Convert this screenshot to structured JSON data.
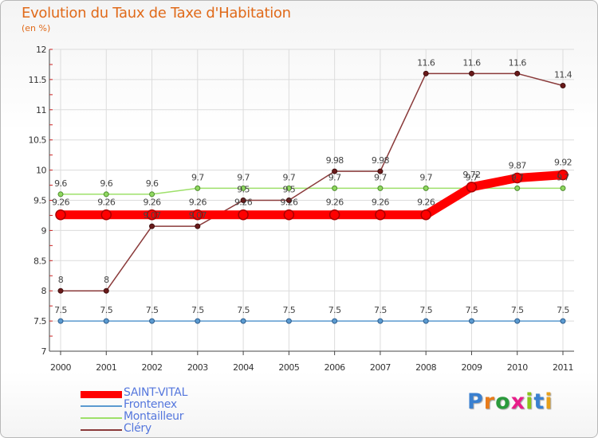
{
  "title": "Evolution du Taux de Taxe d'Habitation",
  "subtitle": "(en %)",
  "logo": {
    "text": "Proxiti",
    "letter_colors": [
      "#3a80d0",
      "#e87b1a",
      "#2a9a3c",
      "#e81e8a",
      "#8ac41a",
      "#3a80d0",
      "#e8a01a"
    ]
  },
  "chart_data": {
    "type": "line",
    "x": [
      "2000",
      "2001",
      "2002",
      "2003",
      "2004",
      "2005",
      "2006",
      "2007",
      "2008",
      "2009",
      "2010",
      "2011"
    ],
    "yticks": [
      "7",
      "7.5",
      "8",
      "8.5",
      "9",
      "9.5",
      "10",
      "10.5",
      "11",
      "11.5",
      "12"
    ],
    "ylim": [
      7,
      12
    ],
    "grid": true,
    "legend_position": "bottom-left",
    "series": [
      {
        "name": "SAINT-VITAL",
        "color": "#ff0000",
        "values": [
          9.26,
          9.26,
          9.26,
          9.26,
          9.26,
          9.26,
          9.26,
          9.26,
          9.26,
          9.72,
          9.87,
          9.92
        ],
        "labels": [
          "9.26",
          "9.26",
          "9.26",
          "9.26",
          "9.26",
          "9.26",
          "9.26",
          "9.26",
          "9.26",
          "9.72",
          "9.87",
          "9.92"
        ]
      },
      {
        "name": "Frontenex",
        "color": "#5b9ad0",
        "values": [
          7.5,
          7.5,
          7.5,
          7.5,
          7.5,
          7.5,
          7.5,
          7.5,
          7.5,
          7.5,
          7.5,
          7.5
        ],
        "labels": [
          "7.5",
          "7.5",
          "7.5",
          "7.5",
          "7.5",
          "7.5",
          "7.5",
          "7.5",
          "7.5",
          "7.5",
          "7.5",
          "7.5"
        ]
      },
      {
        "name": "Montailleur",
        "color": "#9ee06a",
        "values": [
          9.6,
          9.6,
          9.6,
          9.7,
          9.7,
          9.7,
          9.7,
          9.7,
          9.7,
          9.7,
          9.7,
          9.7
        ],
        "labels": [
          "9.6",
          "9.6",
          "9.6",
          "9.7",
          "9.7",
          "9.7",
          "9.7",
          "9.7",
          "9.7",
          "9.7",
          "9.7",
          "9.7"
        ]
      },
      {
        "name": "Cléry",
        "color": "#8a3a3a",
        "values": [
          8,
          8,
          9.07,
          9.07,
          9.5,
          9.5,
          9.98,
          9.98,
          11.6,
          11.6,
          11.6,
          11.4
        ],
        "labels": [
          "8",
          "8",
          "9.07",
          "9.07",
          "9.5",
          "9.5",
          "9.98",
          "9.98",
          "11.6",
          "11.6",
          "11.6",
          "11.4"
        ]
      }
    ]
  }
}
